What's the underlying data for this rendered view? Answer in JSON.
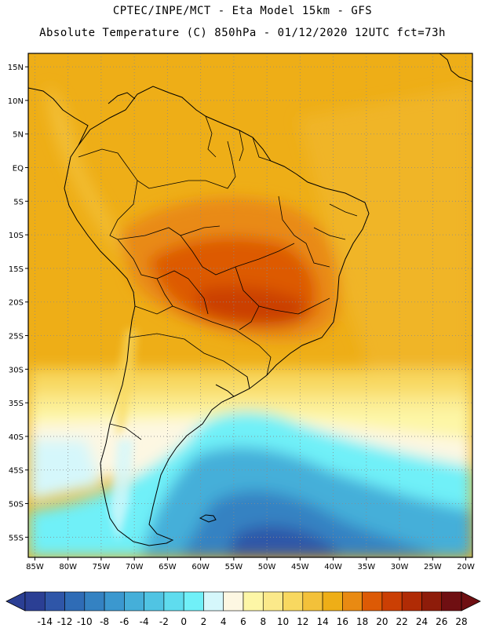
{
  "header": {
    "line1": "CPTEC/INPE/MCT -  Eta Model 15km - GFS",
    "line2": "Absolute Temperature (C) 850hPa - 01/12/2020 12UTC fct=73h"
  },
  "map": {
    "lon_range": [
      -86,
      -19
    ],
    "lat_range": [
      -58,
      17
    ],
    "lon_ticks": [
      "85W",
      "80W",
      "75W",
      "70W",
      "65W",
      "60W",
      "55W",
      "50W",
      "45W",
      "40W",
      "35W",
      "30W",
      "25W",
      "20W"
    ],
    "lat_ticks": [
      "15N",
      "10N",
      "5N",
      "EQ",
      "5S",
      "10S",
      "15S",
      "20S",
      "25S",
      "30S",
      "35S",
      "40S",
      "45S",
      "50S",
      "55S"
    ],
    "grid": "dotted"
  },
  "colorbar": {
    "labels": [
      "-14",
      "-12",
      "-10",
      "-8",
      "-6",
      "-4",
      "-2",
      "0",
      "2",
      "4",
      "6",
      "8",
      "10",
      "12",
      "14",
      "16",
      "18",
      "20",
      "22",
      "24",
      "26",
      "28"
    ],
    "colors": [
      "#2b3f94",
      "#2f56a8",
      "#2f6cb6",
      "#3482c2",
      "#3b98cf",
      "#45afd9",
      "#50c4e3",
      "#5fdcee",
      "#70f0f8",
      "#d5f7fb",
      "#fdf7e2",
      "#fdf6a6",
      "#fbe98a",
      "#f8d860",
      "#f3c13a",
      "#eeae17",
      "#e98a12",
      "#dd5a05",
      "#cb3f04",
      "#b02b05",
      "#8e1c0a",
      "#6f0f12"
    ]
  }
}
